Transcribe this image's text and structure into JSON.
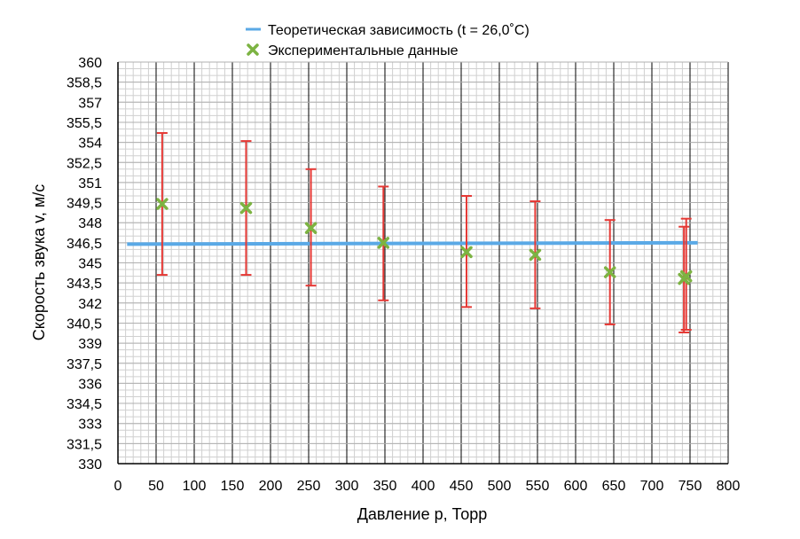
{
  "chart_data": {
    "type": "scatter",
    "xlabel": "Давление p, Торр",
    "ylabel": "Скорость звука v, м/с",
    "xlim": [
      0,
      800
    ],
    "ylim": [
      330,
      360
    ],
    "x_ticks": [
      0,
      50,
      100,
      150,
      200,
      250,
      300,
      350,
      400,
      450,
      500,
      550,
      600,
      650,
      700,
      750,
      800
    ],
    "y_ticks": [
      "330",
      "331,5",
      "333",
      "334,5",
      "336",
      "337,5",
      "339",
      "340,5",
      "342",
      "343,5",
      "345",
      "346,5",
      "348",
      "349,5",
      "351",
      "352,5",
      "354",
      "355,5",
      "357",
      "358,5",
      "360"
    ],
    "x_minor_step": 10,
    "y_minor_step": 0.5,
    "grid": true,
    "legend_position": "top-center",
    "series": [
      {
        "name": "Теоретическая зависимость (t = 26,0˚C)",
        "kind": "line",
        "color": "#5aa9e6",
        "x": [
          12,
          760
        ],
        "y": [
          346.4,
          346.5
        ]
      },
      {
        "name": "Экспериментальные данные",
        "kind": "scatter",
        "marker": "x",
        "color": "#7cb342",
        "error_color": "#e53935",
        "points": [
          {
            "x": 58,
            "y": 349.4,
            "ylo": 344.1,
            "yhi": 354.7
          },
          {
            "x": 168,
            "y": 349.1,
            "ylo": 344.1,
            "yhi": 354.1
          },
          {
            "x": 253,
            "y": 347.6,
            "ylo": 343.3,
            "yhi": 352.0
          },
          {
            "x": 348,
            "y": 346.5,
            "ylo": 342.2,
            "yhi": 350.7
          },
          {
            "x": 457,
            "y": 345.8,
            "ylo": 341.7,
            "yhi": 350.0
          },
          {
            "x": 547,
            "y": 345.6,
            "ylo": 341.6,
            "yhi": 349.6
          },
          {
            "x": 645,
            "y": 344.3,
            "ylo": 340.4,
            "yhi": 348.2
          },
          {
            "x": 742,
            "y": 343.8,
            "ylo": 339.8,
            "yhi": 347.7
          },
          {
            "x": 745,
            "y": 344.0,
            "ylo": 340.0,
            "yhi": 348.3
          }
        ]
      }
    ]
  }
}
